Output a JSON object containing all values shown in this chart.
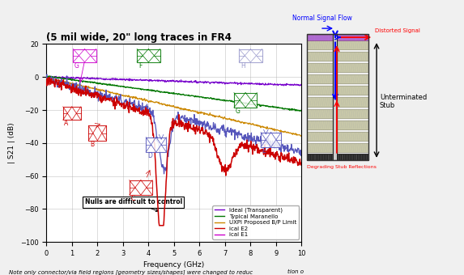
{
  "title": "(5 mil wide, 20\" long traces in FR4",
  "xlabel": "Frequency (GHz)",
  "ylabel": "| S21 | (dB)",
  "xlim": [
    0,
    10
  ],
  "ylim": [
    -100,
    20
  ],
  "yticks": [
    -100,
    -80,
    -60,
    -40,
    -20,
    0,
    20
  ],
  "xticks": [
    0,
    1,
    2,
    3,
    4,
    5,
    6,
    7,
    8,
    9,
    10
  ],
  "note": "Note only connector/via field regions [geometry sizes/shapes] were changed to reduc",
  "legend_items": [
    {
      "label": "Ideal (Transparent)",
      "color": "#5555bb"
    },
    {
      "label": "Typical Maranello",
      "color": "#007700"
    },
    {
      "label": "UXPI Proposed B/P Limit",
      "color": "#cc8800"
    },
    {
      "label": "ical E2",
      "color": "#cc0000"
    },
    {
      "label": "ical E1",
      "color": "#cc00cc"
    }
  ],
  "annotation_null": "Nulls are difficult to control",
  "bg_color": "#f0f0f0",
  "plot_bg": "#ffffff",
  "pcb_layer_color": "#c8c8a8",
  "pcb_border_color": "#888866",
  "via_copper_color": "#333333",
  "purple_line_color": "#7700cc"
}
